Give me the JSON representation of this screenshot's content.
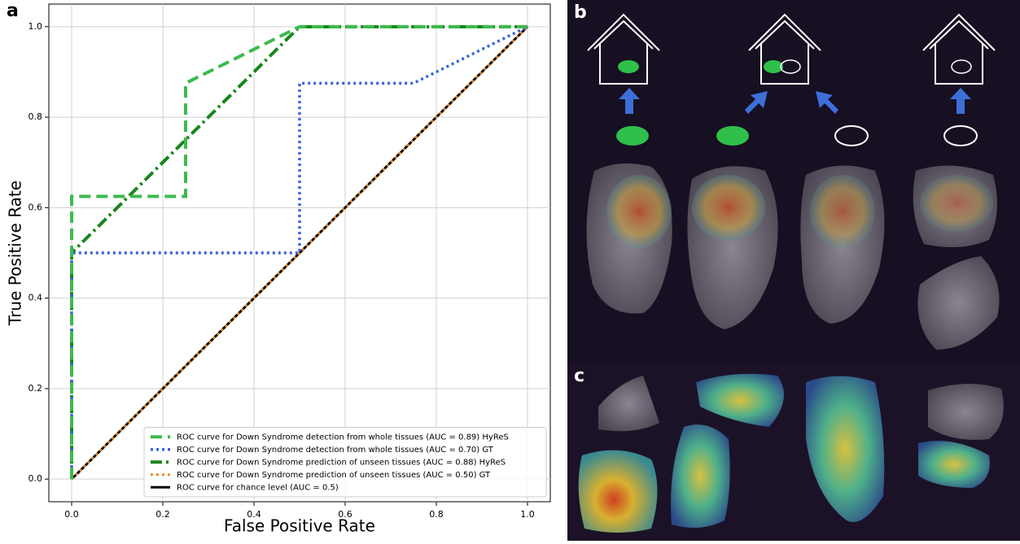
{
  "panel_labels": [
    "a",
    "b",
    "c"
  ],
  "chart_data": {
    "type": "line",
    "xlabel": "False Positive Rate",
    "ylabel": "True Positive Rate",
    "xlim": [
      -0.05,
      1.05
    ],
    "ylim": [
      -0.05,
      1.05
    ],
    "xticks": [
      {
        "value": 0,
        "label": "0.0"
      },
      {
        "value": 0.2,
        "label": "0.2"
      },
      {
        "value": 0.4,
        "label": "0.4"
      },
      {
        "value": 0.6,
        "label": "0.6"
      },
      {
        "value": 0.8,
        "label": "0.8"
      },
      {
        "value": 1,
        "label": "1.0"
      }
    ],
    "yticks": [
      {
        "value": 0,
        "label": "0.0"
      },
      {
        "value": 0.2,
        "label": "0.2"
      },
      {
        "value": 0.4,
        "label": "0.4"
      },
      {
        "value": 0.6,
        "label": "0.6"
      },
      {
        "value": 0.8,
        "label": "0.8"
      },
      {
        "value": 1,
        "label": "1.0"
      }
    ],
    "grid": true,
    "legend": "lower right",
    "series": [
      {
        "name": "ROC curve for Down Syndrome detection from whole tissues (AUC = 0.89) HyReS",
        "color": "#3dba4c",
        "style": "dashed",
        "width": 4,
        "x": [
          0,
          0,
          0.25,
          0.25,
          0.5,
          1
        ],
        "values": [
          0,
          0.625,
          0.625,
          0.875,
          1,
          1
        ]
      },
      {
        "name": "ROC curve for Down Syndrome detection from whole tissues (AUC = 0.70) GT",
        "color": "#3b62e0",
        "style": "dotted",
        "width": 3.5,
        "x": [
          0,
          0,
          0.5,
          0.5,
          0.75,
          1
        ],
        "values": [
          0,
          0.5,
          0.5,
          0.875,
          0.875,
          1
        ]
      },
      {
        "name": "ROC curve for Down Syndrome prediction of unseen tissues (AUC = 0.88) HyReS",
        "color": "#17861a",
        "style": "dashdot",
        "width": 4,
        "x": [
          0,
          0,
          0.5,
          1
        ],
        "values": [
          0,
          0.5,
          1,
          1
        ]
      },
      {
        "name": "ROC curve for Down Syndrome prediction of unseen tissues (AUC = 0.50) GT",
        "color": "#e8862a",
        "style": "dotted",
        "width": 3,
        "x": [
          0,
          1
        ],
        "values": [
          0,
          1
        ]
      },
      {
        "name": "ROC curve for chance level (AUC = 0.5)",
        "color": "#000000",
        "style": "solid",
        "width": 3,
        "x": [
          0,
          1
        ],
        "values": [
          0,
          1
        ]
      }
    ]
  }
}
